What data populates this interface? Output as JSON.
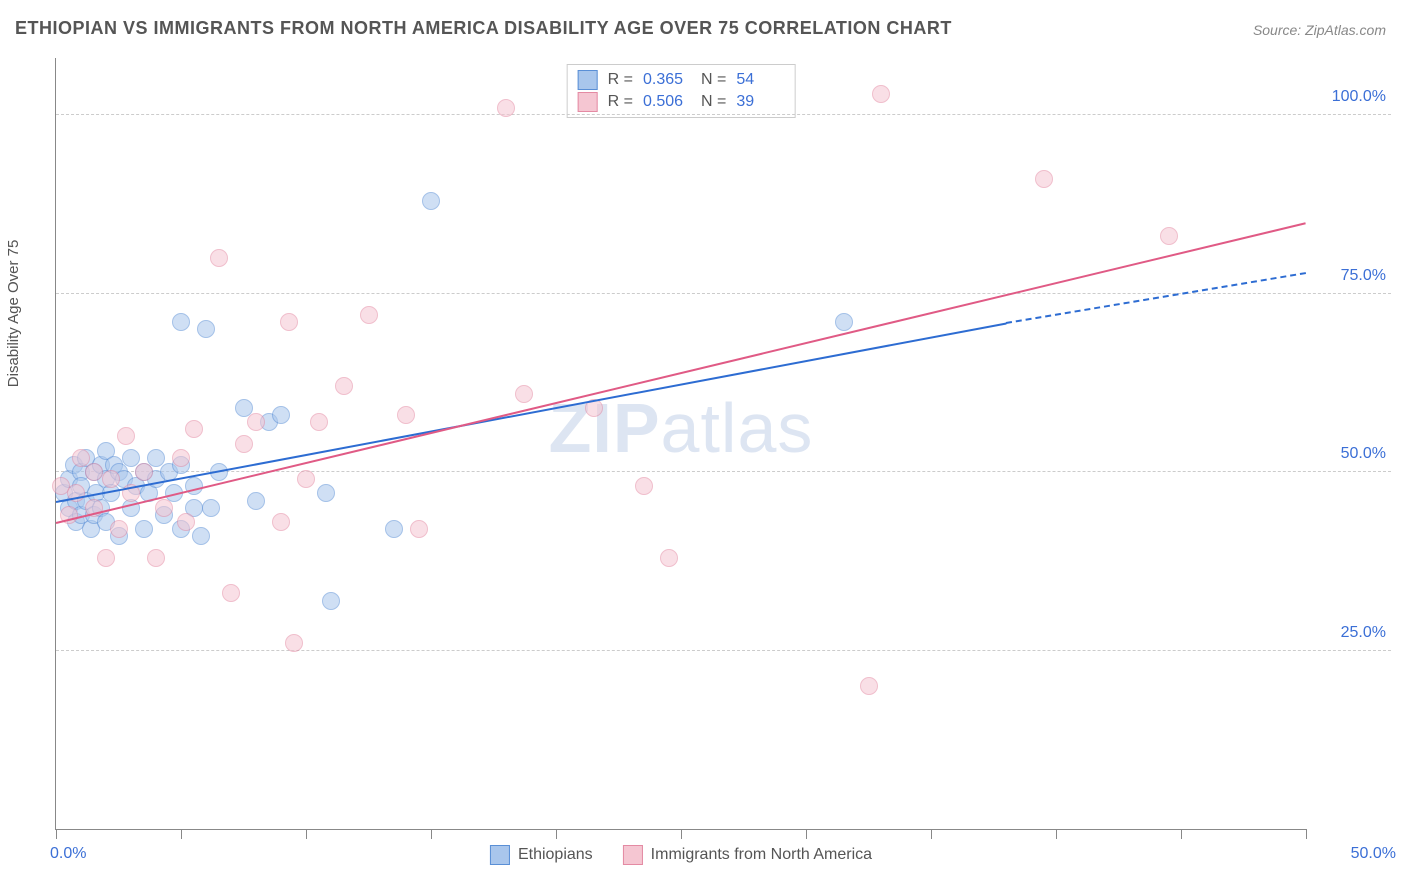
{
  "title": "ETHIOPIAN VS IMMIGRANTS FROM NORTH AMERICA DISABILITY AGE OVER 75 CORRELATION CHART",
  "source": "Source: ZipAtlas.com",
  "ylabel": "Disability Age Over 75",
  "watermark": {
    "bold": "ZIP",
    "rest": "atlas"
  },
  "chart": {
    "type": "scatter",
    "xlim": [
      0,
      50
    ],
    "ylim": [
      0,
      108
    ],
    "background_color": "#ffffff",
    "grid_color": "#cccccc",
    "axis_color": "#888888",
    "tick_label_color": "#3b6fd6",
    "tick_label_fontsize": 16,
    "point_radius": 9,
    "point_opacity": 0.55,
    "x_ticks": [
      0,
      5,
      10,
      15,
      20,
      25,
      30,
      35,
      40,
      45,
      50
    ],
    "x_tick_labels": {
      "0": "0.0%",
      "50": "50.0%"
    },
    "y_gridlines": [
      25,
      50,
      75,
      100
    ],
    "y_tick_labels": {
      "25": "25.0%",
      "50": "50.0%",
      "75": "75.0%",
      "100": "100.0%"
    }
  },
  "series": [
    {
      "name": "Ethiopians",
      "fill_color": "#a9c6ec",
      "stroke_color": "#5a8fd6",
      "trend_color": "#2d6cd2",
      "trend": {
        "x1": 0,
        "y1": 46,
        "x2": 38,
        "y2": 71,
        "dashed_to_x": 50,
        "dashed_to_y": 78
      },
      "stats": {
        "R": "0.365",
        "N": "54"
      },
      "points": [
        [
          0.3,
          47
        ],
        [
          0.5,
          49
        ],
        [
          0.5,
          45
        ],
        [
          0.7,
          51
        ],
        [
          0.8,
          46
        ],
        [
          0.8,
          43
        ],
        [
          1.0,
          50
        ],
        [
          1.0,
          44
        ],
        [
          1.0,
          48
        ],
        [
          1.2,
          52
        ],
        [
          1.2,
          46
        ],
        [
          1.4,
          42
        ],
        [
          1.5,
          50
        ],
        [
          1.5,
          44
        ],
        [
          1.6,
          47
        ],
        [
          1.8,
          51
        ],
        [
          1.8,
          45
        ],
        [
          2.0,
          49
        ],
        [
          2.0,
          43
        ],
        [
          2.0,
          53
        ],
        [
          2.2,
          47
        ],
        [
          2.3,
          51
        ],
        [
          2.5,
          41
        ],
        [
          2.5,
          50
        ],
        [
          2.7,
          49
        ],
        [
          3.0,
          45
        ],
        [
          3.0,
          52
        ],
        [
          3.2,
          48
        ],
        [
          3.5,
          50
        ],
        [
          3.5,
          42
        ],
        [
          3.7,
          47
        ],
        [
          4.0,
          52
        ],
        [
          4.0,
          49
        ],
        [
          4.3,
          44
        ],
        [
          4.5,
          50
        ],
        [
          4.7,
          47
        ],
        [
          5.0,
          71
        ],
        [
          5.0,
          51
        ],
        [
          5.0,
          42
        ],
        [
          5.5,
          48
        ],
        [
          5.5,
          45
        ],
        [
          5.8,
          41
        ],
        [
          6.0,
          70
        ],
        [
          6.2,
          45
        ],
        [
          6.5,
          50
        ],
        [
          7.5,
          59
        ],
        [
          8.0,
          46
        ],
        [
          8.5,
          57
        ],
        [
          9.0,
          58
        ],
        [
          10.8,
          47
        ],
        [
          11.0,
          32
        ],
        [
          13.5,
          42
        ],
        [
          15.0,
          88
        ],
        [
          31.5,
          71
        ]
      ]
    },
    {
      "name": "Immigrants from North America",
      "fill_color": "#f5c6d2",
      "stroke_color": "#e48aa3",
      "trend_color": "#e05a85",
      "trend": {
        "x1": 0,
        "y1": 43,
        "x2": 50,
        "y2": 85
      },
      "stats": {
        "R": "0.506",
        "N": "39"
      },
      "points": [
        [
          0.2,
          48
        ],
        [
          0.5,
          44
        ],
        [
          0.8,
          47
        ],
        [
          1.0,
          52
        ],
        [
          1.5,
          45
        ],
        [
          1.5,
          50
        ],
        [
          2.0,
          38
        ],
        [
          2.2,
          49
        ],
        [
          2.5,
          42
        ],
        [
          2.8,
          55
        ],
        [
          3.0,
          47
        ],
        [
          3.5,
          50
        ],
        [
          4.0,
          38
        ],
        [
          4.3,
          45
        ],
        [
          5.0,
          52
        ],
        [
          5.2,
          43
        ],
        [
          5.5,
          56
        ],
        [
          6.5,
          80
        ],
        [
          7.0,
          33
        ],
        [
          7.5,
          54
        ],
        [
          8.0,
          57
        ],
        [
          9.0,
          43
        ],
        [
          9.3,
          71
        ],
        [
          9.5,
          26
        ],
        [
          10.0,
          49
        ],
        [
          10.5,
          57
        ],
        [
          11.5,
          62
        ],
        [
          12.5,
          72
        ],
        [
          14.0,
          58
        ],
        [
          14.5,
          42
        ],
        [
          18.0,
          101
        ],
        [
          18.7,
          61
        ],
        [
          21.5,
          59
        ],
        [
          23.5,
          48
        ],
        [
          24.5,
          38
        ],
        [
          32.5,
          20
        ],
        [
          33.0,
          103
        ],
        [
          39.5,
          91
        ],
        [
          44.5,
          83
        ]
      ]
    }
  ],
  "bottom_legend": [
    {
      "label": "Ethiopians",
      "fill": "#a9c6ec",
      "stroke": "#5a8fd6"
    },
    {
      "label": "Immigrants from North America",
      "fill": "#f5c6d2",
      "stroke": "#e48aa3"
    }
  ]
}
